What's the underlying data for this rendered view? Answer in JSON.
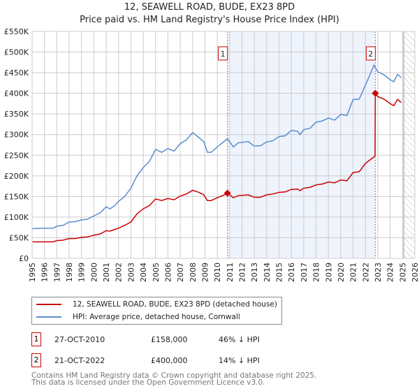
{
  "chart_data": {
    "type": "line",
    "title": "12, SEAWELL ROAD, BUDE, EX23 8PD",
    "subtitle": "Price paid vs. HM Land Registry's House Price Index (HPI)",
    "xlim": [
      1995,
      2026
    ],
    "ylim": [
      0,
      550000
    ],
    "x_ticks": [
      "1995",
      "1996",
      "1997",
      "1998",
      "1999",
      "2000",
      "2001",
      "2002",
      "2003",
      "2004",
      "2005",
      "2006",
      "2007",
      "2008",
      "2009",
      "2010",
      "2011",
      "2012",
      "2013",
      "2014",
      "2015",
      "2016",
      "2017",
      "2018",
      "2019",
      "2020",
      "2021",
      "2022",
      "2023",
      "2024",
      "2025",
      "2026"
    ],
    "y_ticks": [
      {
        "v": 0,
        "label": "£0"
      },
      {
        "v": 50000,
        "label": "£50K"
      },
      {
        "v": 100000,
        "label": "£100K"
      },
      {
        "v": 150000,
        "label": "£150K"
      },
      {
        "v": 200000,
        "label": "£200K"
      },
      {
        "v": 250000,
        "label": "£250K"
      },
      {
        "v": 300000,
        "label": "£300K"
      },
      {
        "v": 350000,
        "label": "£350K"
      },
      {
        "v": 400000,
        "label": "£400K"
      },
      {
        "v": 450000,
        "label": "£450K"
      },
      {
        "v": 500000,
        "label": "£500K"
      },
      {
        "v": 550000,
        "label": "£550K"
      }
    ],
    "grid": true,
    "shaded_range": [
      2010.82,
      2022.8
    ],
    "forecast_hatch_from": 2025.1,
    "series": [
      {
        "name": "12, SEAWELL ROAD, BUDE, EX23 8PD (detached house)",
        "color": "#cc0000",
        "points": [
          [
            1995,
            40000
          ],
          [
            1996,
            40000
          ],
          [
            1996.7,
            40000
          ],
          [
            1997,
            43000
          ],
          [
            1997.5,
            44000
          ],
          [
            1998,
            48000
          ],
          [
            1998.5,
            48000
          ],
          [
            1999,
            51000
          ],
          [
            1999.5,
            52000
          ],
          [
            2000,
            56000
          ],
          [
            2000.5,
            59000
          ],
          [
            2001,
            67000
          ],
          [
            2001.3,
            66000
          ],
          [
            2001.7,
            70000
          ],
          [
            2002,
            73000
          ],
          [
            2002.5,
            80000
          ],
          [
            2003,
            88000
          ],
          [
            2003.5,
            108000
          ],
          [
            2004,
            120000
          ],
          [
            2004.5,
            128000
          ],
          [
            2005,
            144000
          ],
          [
            2005.5,
            140000
          ],
          [
            2006,
            145000
          ],
          [
            2006.5,
            142000
          ],
          [
            2007,
            151000
          ],
          [
            2007.5,
            156000
          ],
          [
            2008,
            165000
          ],
          [
            2008.5,
            160000
          ],
          [
            2008.9,
            154000
          ],
          [
            2009.2,
            140000
          ],
          [
            2009.5,
            140000
          ],
          [
            2010,
            147000
          ],
          [
            2010.5,
            153000
          ],
          [
            2010.82,
            158000
          ],
          [
            2011.3,
            147000
          ],
          [
            2011.7,
            152000
          ],
          [
            2012.5,
            154000
          ],
          [
            2013,
            148000
          ],
          [
            2013.5,
            148000
          ],
          [
            2014,
            154000
          ],
          [
            2014.5,
            156000
          ],
          [
            2015,
            160000
          ],
          [
            2015.5,
            161000
          ],
          [
            2016,
            167000
          ],
          [
            2016.5,
            168000
          ],
          [
            2016.7,
            164000
          ],
          [
            2017,
            170000
          ],
          [
            2017.5,
            172000
          ],
          [
            2018,
            178000
          ],
          [
            2018.5,
            180000
          ],
          [
            2019,
            185000
          ],
          [
            2019.5,
            183000
          ],
          [
            2020,
            190000
          ],
          [
            2020.5,
            188000
          ],
          [
            2021,
            208000
          ],
          [
            2021.5,
            210000
          ],
          [
            2022,
            230000
          ],
          [
            2022.78,
            248000
          ],
          [
            2022.8,
            400000
          ],
          [
            2023,
            392000
          ],
          [
            2023.5,
            386000
          ],
          [
            2024,
            375000
          ],
          [
            2024.3,
            370000
          ],
          [
            2024.6,
            385000
          ],
          [
            2024.9,
            378000
          ]
        ]
      },
      {
        "name": "HPI: Average price, detached house, Cornwall",
        "color": "#5b8dd0",
        "points": [
          [
            1995,
            72000
          ],
          [
            1996,
            73000
          ],
          [
            1996.7,
            73000
          ],
          [
            1997,
            78000
          ],
          [
            1997.5,
            80000
          ],
          [
            1998,
            88000
          ],
          [
            1998.5,
            89000
          ],
          [
            1999,
            93000
          ],
          [
            1999.5,
            95000
          ],
          [
            2000,
            103000
          ],
          [
            2000.5,
            110000
          ],
          [
            2001,
            125000
          ],
          [
            2001.3,
            120000
          ],
          [
            2001.7,
            128000
          ],
          [
            2002,
            138000
          ],
          [
            2002.5,
            150000
          ],
          [
            2003,
            170000
          ],
          [
            2003.5,
            200000
          ],
          [
            2004,
            220000
          ],
          [
            2004.5,
            235000
          ],
          [
            2005,
            264000
          ],
          [
            2005.5,
            257000
          ],
          [
            2006,
            266000
          ],
          [
            2006.5,
            260000
          ],
          [
            2007,
            278000
          ],
          [
            2007.5,
            287000
          ],
          [
            2008,
            305000
          ],
          [
            2008.5,
            293000
          ],
          [
            2008.9,
            283000
          ],
          [
            2009.2,
            257000
          ],
          [
            2009.5,
            257000
          ],
          [
            2010,
            270000
          ],
          [
            2010.5,
            282000
          ],
          [
            2010.82,
            290000
          ],
          [
            2011.3,
            270000
          ],
          [
            2011.7,
            280000
          ],
          [
            2012.5,
            283000
          ],
          [
            2013,
            272000
          ],
          [
            2013.5,
            273000
          ],
          [
            2014,
            282000
          ],
          [
            2014.5,
            285000
          ],
          [
            2015,
            295000
          ],
          [
            2015.5,
            297000
          ],
          [
            2016,
            310000
          ],
          [
            2016.5,
            308000
          ],
          [
            2016.7,
            300000
          ],
          [
            2017,
            312000
          ],
          [
            2017.5,
            315000
          ],
          [
            2018,
            330000
          ],
          [
            2018.5,
            333000
          ],
          [
            2019,
            340000
          ],
          [
            2019.5,
            335000
          ],
          [
            2020,
            349000
          ],
          [
            2020.5,
            346000
          ],
          [
            2021,
            385000
          ],
          [
            2021.5,
            386000
          ],
          [
            2022,
            420000
          ],
          [
            2022.7,
            468000
          ],
          [
            2023,
            452000
          ],
          [
            2023.5,
            445000
          ],
          [
            2024,
            433000
          ],
          [
            2024.3,
            428000
          ],
          [
            2024.6,
            446000
          ],
          [
            2024.9,
            438000
          ]
        ]
      }
    ],
    "markers": [
      {
        "label": "1",
        "x": 2010.82,
        "y": 158000
      },
      {
        "label": "2",
        "x": 2022.8,
        "y": 400000
      }
    ]
  },
  "legend": {
    "red": "12, SEAWELL ROAD, BUDE, EX23 8PD (detached house)",
    "blue": "HPI: Average price, detached house, Cornwall"
  },
  "transactions": [
    {
      "num": "1",
      "date": "27-OCT-2010",
      "price": "£158,000",
      "hpi": "46% ↓ HPI"
    },
    {
      "num": "2",
      "date": "21-OCT-2022",
      "price": "£400,000",
      "hpi": "14% ↓ HPI"
    }
  ],
  "footer": {
    "line1": "Contains HM Land Registry data © Crown copyright and database right 2025.",
    "line2": "This data is licensed under the Open Government Licence v3.0."
  }
}
